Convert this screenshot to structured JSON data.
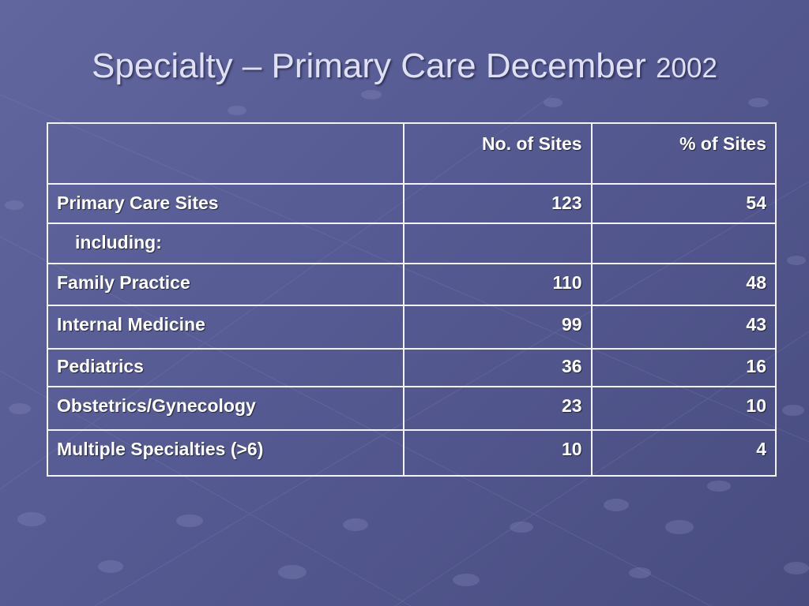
{
  "slide": {
    "title_main": "Specialty – Primary Care December",
    "title_year": "2002",
    "background_color": "#575c93"
  },
  "table": {
    "headers": [
      "",
      "No. of Sites",
      "% of Sites"
    ],
    "rows": [
      {
        "label": "Primary Care Sites",
        "sites": "123",
        "percent": "54"
      },
      {
        "label": "including:",
        "sites": "",
        "percent": ""
      },
      {
        "label": "Family Practice",
        "sites": "110",
        "percent": "48"
      },
      {
        "label": "Internal Medicine",
        "sites": "99",
        "percent": "43"
      },
      {
        "label": "Pediatrics",
        "sites": "36",
        "percent": "16"
      },
      {
        "label": "Obstetrics/Gynecology",
        "sites": "23",
        "percent": "10"
      },
      {
        "label": "Multiple Specialties (>6)",
        "sites": "10",
        "percent": "4"
      }
    ]
  }
}
